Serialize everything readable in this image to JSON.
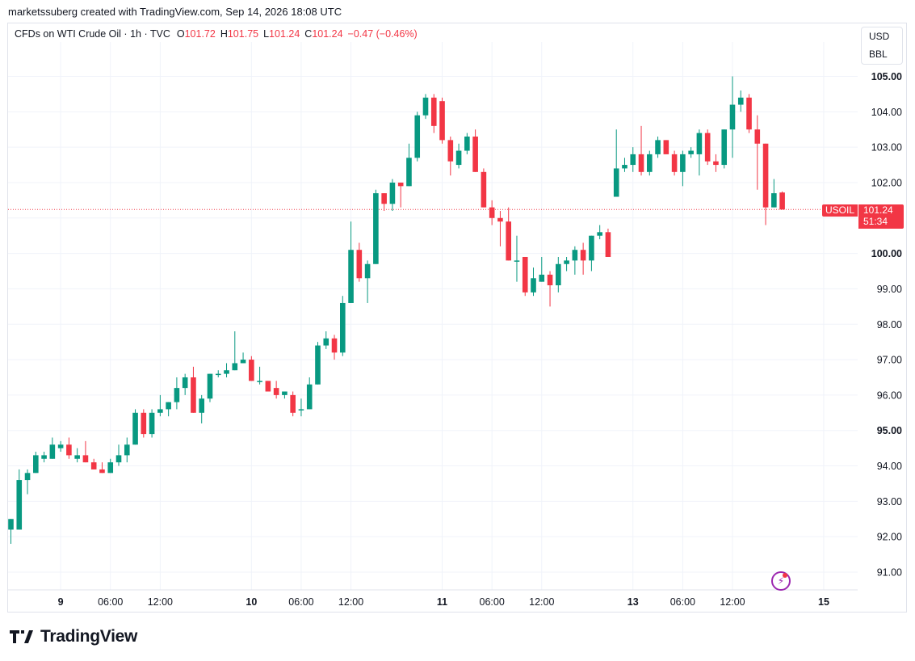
{
  "header": {
    "credit": "marketssuberg created with TradingView.com, Sep 14, 2026 18:08 UTC"
  },
  "legend": {
    "symbol": "CFDs on WTI Crude Oil · 1h · TVC",
    "open_label": "O",
    "open": "101.72",
    "high_label": "H",
    "high": "101.75",
    "low_label": "L",
    "low": "101.24",
    "close_label": "C",
    "close": "101.24",
    "change": "−0.47 (−0.46%)"
  },
  "units": {
    "currency": "USD",
    "unit": "BBL"
  },
  "price_tag": {
    "ticker": "USOIL",
    "last": "101.24",
    "countdown": "51:34"
  },
  "footer": {
    "brand": "TradingView"
  },
  "colors": {
    "up": "#089981",
    "down": "#f23645",
    "grid": "#f0f3fa"
  },
  "chart_data": {
    "type": "candlestick",
    "title": "",
    "xlabel": "",
    "ylabel": "",
    "ylim": [
      90.5,
      105.5
    ],
    "y_ticks": [
      {
        "value": 91,
        "label": "91.00",
        "major": false
      },
      {
        "value": 92,
        "label": "92.00",
        "major": false
      },
      {
        "value": 93,
        "label": "93.00",
        "major": false
      },
      {
        "value": 94,
        "label": "94.00",
        "major": false
      },
      {
        "value": 95,
        "label": "95.00",
        "major": true
      },
      {
        "value": 96,
        "label": "96.00",
        "major": false
      },
      {
        "value": 97,
        "label": "97.00",
        "major": false
      },
      {
        "value": 98,
        "label": "98.00",
        "major": false
      },
      {
        "value": 99,
        "label": "99.00",
        "major": false
      },
      {
        "value": 100,
        "label": "100.00",
        "major": true
      },
      {
        "value": 101,
        "label": "101.00",
        "major": false
      },
      {
        "value": 102,
        "label": "102.00",
        "major": false
      },
      {
        "value": 103,
        "label": "103.00",
        "major": false
      },
      {
        "value": 104,
        "label": "104.00",
        "major": false
      },
      {
        "value": 105,
        "label": "105.00",
        "major": true
      }
    ],
    "x_ticks": [
      {
        "index": 6,
        "label": "9",
        "major": true
      },
      {
        "index": 12,
        "label": "06:00",
        "major": false
      },
      {
        "index": 18,
        "label": "12:00",
        "major": false
      },
      {
        "index": 29,
        "label": "10",
        "major": true
      },
      {
        "index": 35,
        "label": "06:00",
        "major": false
      },
      {
        "index": 41,
        "label": "12:00",
        "major": false
      },
      {
        "index": 52,
        "label": "11",
        "major": true
      },
      {
        "index": 58,
        "label": "06:00",
        "major": false
      },
      {
        "index": 64,
        "label": "12:00",
        "major": false
      },
      {
        "index": 75,
        "label": "13",
        "major": true
      },
      {
        "index": 81,
        "label": "06:00",
        "major": false
      },
      {
        "index": 87,
        "label": "12:00",
        "major": false
      },
      {
        "index": 98,
        "label": "15",
        "major": true
      }
    ],
    "last_price": 101.24,
    "candles": [
      [
        92.2,
        92.5,
        91.8,
        92.5
      ],
      [
        92.2,
        93.9,
        92.2,
        93.6
      ],
      [
        93.6,
        93.9,
        93.2,
        93.8
      ],
      [
        93.8,
        94.4,
        93.8,
        94.3
      ],
      [
        94.2,
        94.4,
        94.1,
        94.3
      ],
      [
        94.2,
        94.8,
        94.2,
        94.6
      ],
      [
        94.5,
        94.7,
        94.4,
        94.6
      ],
      [
        94.6,
        94.8,
        94.2,
        94.3
      ],
      [
        94.2,
        94.5,
        94.1,
        94.3
      ],
      [
        94.3,
        94.7,
        94.1,
        94.1
      ],
      [
        94.1,
        94.2,
        93.9,
        93.9
      ],
      [
        93.9,
        94.1,
        93.8,
        93.8
      ],
      [
        93.8,
        94.2,
        93.8,
        94.1
      ],
      [
        94.1,
        94.6,
        94.0,
        94.3
      ],
      [
        94.3,
        94.8,
        94.1,
        94.6
      ],
      [
        94.6,
        95.6,
        94.6,
        95.5
      ],
      [
        95.5,
        95.6,
        94.8,
        94.9
      ],
      [
        94.9,
        95.6,
        94.8,
        95.5
      ],
      [
        95.5,
        96.0,
        95.4,
        95.6
      ],
      [
        95.6,
        95.8,
        95.4,
        95.8
      ],
      [
        95.8,
        96.5,
        95.6,
        96.2
      ],
      [
        96.2,
        96.6,
        96.0,
        96.5
      ],
      [
        96.5,
        96.8,
        95.5,
        95.5
      ],
      [
        95.5,
        96.0,
        95.2,
        95.9
      ],
      [
        95.9,
        96.6,
        95.8,
        96.6
      ],
      [
        96.6,
        96.7,
        96.5,
        96.6
      ],
      [
        96.6,
        96.9,
        96.5,
        96.7
      ],
      [
        96.7,
        97.8,
        96.7,
        96.9
      ],
      [
        96.9,
        97.2,
        96.9,
        97.0
      ],
      [
        97.0,
        97.1,
        96.4,
        96.4
      ],
      [
        96.4,
        96.8,
        96.3,
        96.4
      ],
      [
        96.4,
        96.4,
        96.1,
        96.1
      ],
      [
        96.2,
        96.4,
        95.9,
        96.0
      ],
      [
        96.0,
        96.1,
        95.9,
        96.1
      ],
      [
        96.0,
        96.1,
        95.4,
        95.5
      ],
      [
        95.6,
        95.9,
        95.4,
        95.6
      ],
      [
        95.6,
        96.5,
        95.6,
        96.3
      ],
      [
        96.3,
        97.5,
        96.3,
        97.4
      ],
      [
        97.4,
        97.8,
        97.3,
        97.6
      ],
      [
        97.6,
        97.7,
        97.0,
        97.2
      ],
      [
        97.2,
        98.8,
        97.1,
        98.6
      ],
      [
        98.6,
        100.9,
        98.6,
        100.1
      ],
      [
        100.1,
        100.3,
        99.2,
        99.3
      ],
      [
        99.3,
        99.8,
        98.6,
        99.7
      ],
      [
        99.7,
        101.8,
        99.7,
        101.7
      ],
      [
        101.7,
        101.7,
        101.2,
        101.4
      ],
      [
        101.4,
        102.1,
        101.2,
        102.0
      ],
      [
        102.0,
        102.0,
        101.3,
        101.9
      ],
      [
        101.9,
        103.1,
        101.9,
        102.7
      ],
      [
        102.7,
        104.0,
        102.6,
        103.9
      ],
      [
        103.9,
        104.5,
        103.8,
        104.4
      ],
      [
        104.4,
        104.5,
        103.4,
        103.6
      ],
      [
        104.3,
        104.4,
        103.1,
        103.2
      ],
      [
        103.2,
        103.3,
        102.2,
        102.6
      ],
      [
        102.5,
        103.1,
        102.4,
        102.9
      ],
      [
        102.9,
        103.4,
        102.8,
        103.3
      ],
      [
        103.3,
        103.5,
        102.3,
        102.3
      ],
      [
        102.3,
        102.4,
        101.3,
        101.3
      ],
      [
        101.3,
        101.5,
        100.8,
        101.0
      ],
      [
        101.0,
        101.2,
        100.2,
        100.9
      ],
      [
        100.9,
        101.3,
        99.8,
        99.8
      ],
      [
        99.8,
        100.5,
        99.2,
        99.8
      ],
      [
        99.9,
        99.9,
        98.8,
        98.9
      ],
      [
        98.9,
        99.6,
        98.8,
        99.3
      ],
      [
        99.2,
        99.9,
        99.2,
        99.4
      ],
      [
        99.4,
        99.5,
        98.5,
        99.1
      ],
      [
        99.1,
        99.9,
        98.9,
        99.7
      ],
      [
        99.7,
        99.9,
        99.5,
        99.8
      ],
      [
        99.8,
        100.2,
        99.4,
        100.1
      ],
      [
        100.1,
        100.3,
        99.4,
        99.8
      ],
      [
        99.8,
        100.5,
        99.5,
        100.5
      ],
      [
        100.5,
        100.8,
        100.4,
        100.6
      ],
      [
        100.6,
        100.7,
        99.9,
        99.9
      ],
      [
        101.6,
        103.5,
        101.6,
        102.4
      ],
      [
        102.4,
        102.7,
        102.3,
        102.5
      ],
      [
        102.5,
        103.0,
        102.3,
        102.8
      ],
      [
        102.8,
        103.6,
        102.2,
        102.3
      ],
      [
        102.3,
        102.9,
        102.2,
        102.8
      ],
      [
        102.8,
        103.3,
        102.7,
        103.2
      ],
      [
        103.2,
        103.2,
        102.8,
        102.8
      ],
      [
        102.8,
        102.9,
        102.2,
        102.3
      ],
      [
        102.3,
        102.9,
        101.9,
        102.8
      ],
      [
        102.8,
        103.0,
        102.7,
        102.9
      ],
      [
        102.8,
        103.5,
        102.2,
        103.4
      ],
      [
        103.4,
        103.5,
        102.5,
        102.6
      ],
      [
        102.6,
        102.8,
        102.3,
        102.5
      ],
      [
        102.5,
        103.5,
        102.4,
        103.5
      ],
      [
        103.5,
        105.0,
        102.7,
        104.2
      ],
      [
        104.2,
        104.6,
        104.0,
        104.4
      ],
      [
        104.4,
        104.5,
        103.4,
        103.5
      ],
      [
        103.5,
        103.9,
        101.8,
        103.1
      ],
      [
        103.1,
        103.1,
        100.8,
        101.3
      ],
      [
        101.3,
        102.1,
        101.3,
        101.7
      ],
      [
        101.72,
        101.75,
        101.24,
        101.24
      ]
    ]
  }
}
